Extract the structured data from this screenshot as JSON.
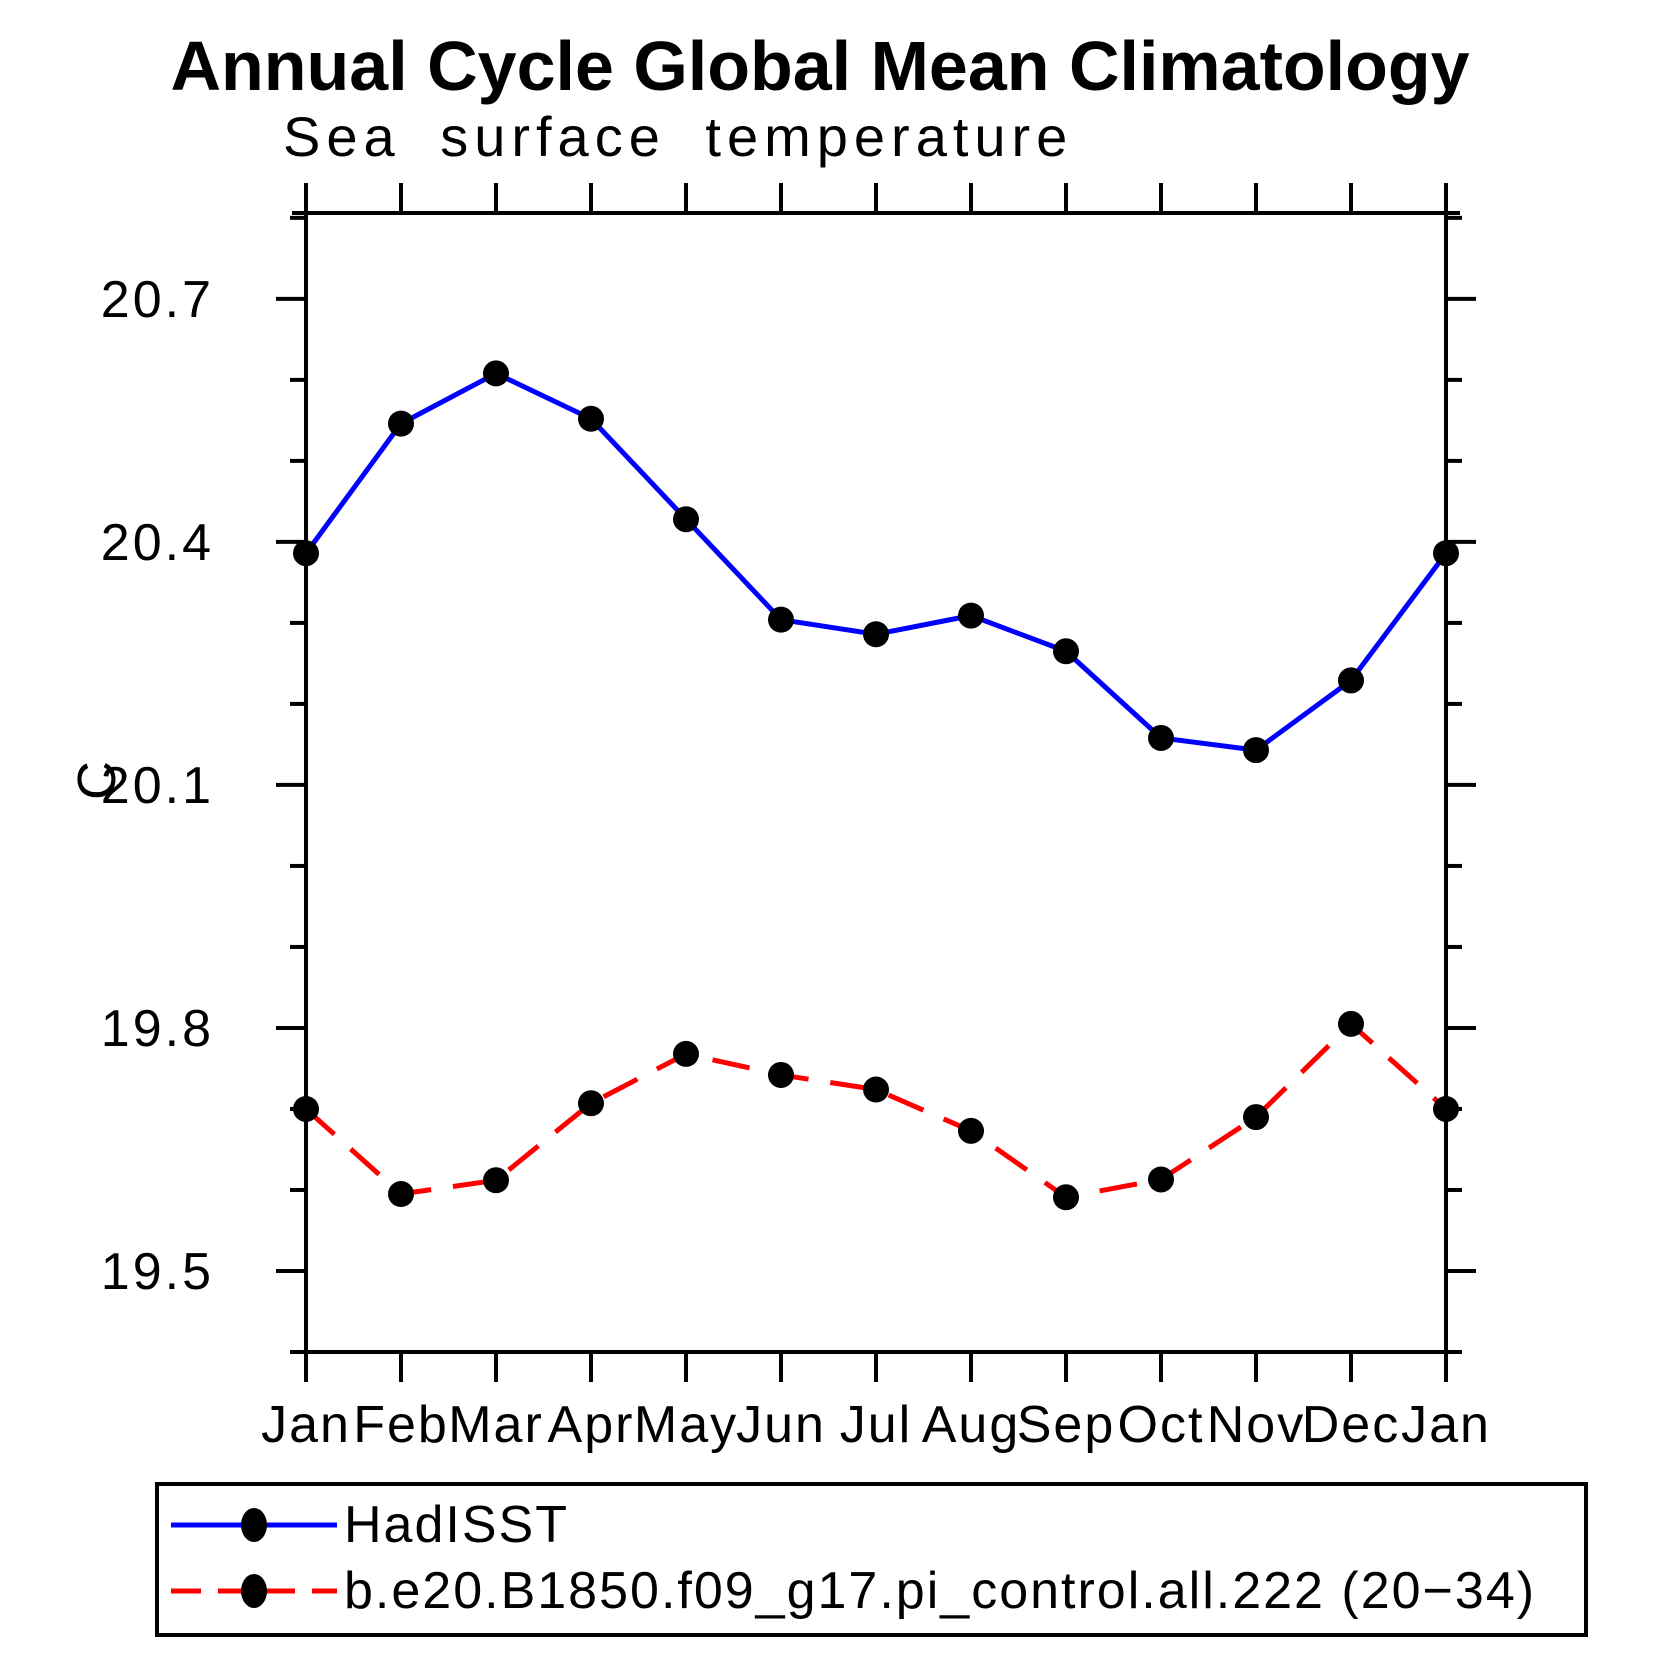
{
  "chart_data": {
    "type": "line",
    "title": "Annual Cycle Global Mean Climatology",
    "subtitle": "Sea surface temperature",
    "ylabel": "C",
    "xlabel": "",
    "categories": [
      "Jan",
      "Feb",
      "Mar",
      "Apr",
      "May",
      "Jun",
      "Jul",
      "Aug",
      "Sep",
      "Oct",
      "Nov",
      "Dec",
      "Jan"
    ],
    "ylim": [
      19.4,
      20.806
    ],
    "y_ticks_major": [
      19.5,
      19.8,
      20.1,
      20.4,
      20.7
    ],
    "y_ticks_minor": [
      19.4,
      19.6,
      19.7,
      19.9,
      20.0,
      20.2,
      20.3,
      20.5,
      20.6,
      20.8
    ],
    "grid": false,
    "legend_position": "bottom-left-box",
    "axis_color": "#000000",
    "series": [
      {
        "name": "HadISST",
        "color": "#0000ff",
        "line_style": "solid",
        "marker": "filled-circle",
        "marker_color": "#000000",
        "values": [
          20.386,
          20.546,
          20.608,
          20.552,
          20.428,
          20.304,
          20.286,
          20.309,
          20.265,
          20.158,
          20.143,
          20.229,
          20.386
        ]
      },
      {
        "name": "b.e20.B1850.f09_g17.pi_control.all.222 (20−34)",
        "color": "#ff0000",
        "line_style": "dashed",
        "marker": "filled-circle",
        "marker_color": "#000000",
        "values": [
          19.7,
          19.595,
          19.612,
          19.707,
          19.768,
          19.742,
          19.724,
          19.673,
          19.591,
          19.613,
          19.69,
          19.805,
          19.7
        ]
      }
    ]
  }
}
